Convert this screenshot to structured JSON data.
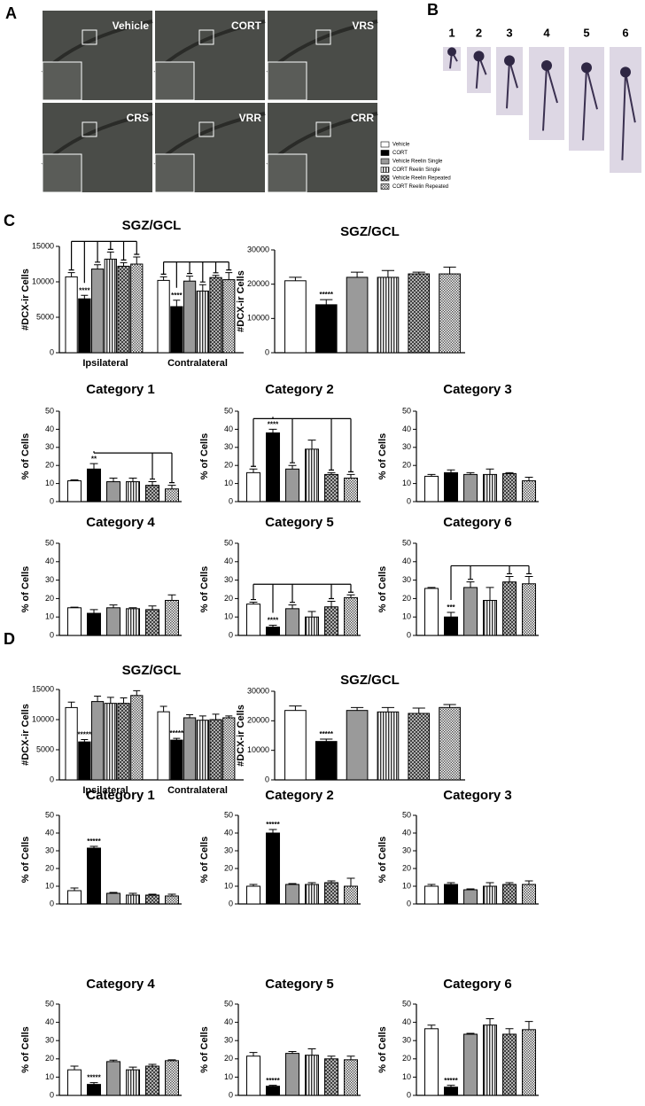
{
  "panel_labels": [
    "A",
    "B",
    "C",
    "D"
  ],
  "micrographs": [
    "Vehicle",
    "CORT",
    "VRS",
    "CRS",
    "VRR",
    "CRR"
  ],
  "morphology_categories": [
    "1",
    "2",
    "3",
    "4",
    "5",
    "6"
  ],
  "legend": [
    {
      "name": "Vehicle",
      "fill": "#ffffff"
    },
    {
      "name": "CORT",
      "fill": "#000000"
    },
    {
      "name": "Vehicle Reelin Single",
      "fill": "#9a9a9a"
    },
    {
      "name": "CORT Reelin Single",
      "fill": "url(#p-vstripe)"
    },
    {
      "name": "Vehicle Reelin Repeated",
      "fill": "url(#p-cross)"
    },
    {
      "name": "CORT Reelin Repeated",
      "fill": "url(#p-check)"
    }
  ],
  "chart_data": [
    {
      "type": "grouped-bar",
      "title": "SGZ/GCL",
      "y_label": "#DCX-ir Cells",
      "categories": [
        "Ipsilateral",
        "Contralateral"
      ],
      "series": [
        {
          "values": [
            10700,
            10200
          ],
          "errors": [
            600,
            500
          ]
        },
        {
          "values": [
            7600,
            6500
          ],
          "errors": [
            500,
            900
          ]
        },
        {
          "values": [
            11800,
            10100
          ],
          "errors": [
            600,
            700
          ]
        },
        {
          "values": [
            13200,
            8700
          ],
          "errors": [
            1000,
            900
          ]
        },
        {
          "values": [
            12200,
            10600
          ],
          "errors": [
            500,
            300
          ]
        },
        {
          "values": [
            12500,
            10300
          ],
          "errors": [
            1000,
            1000
          ]
        }
      ],
      "annotations": [
        {
          "series": 1,
          "category": 0,
          "text": "****"
        },
        {
          "series": 1,
          "category": 1,
          "text": "****"
        }
      ],
      "brackets": [
        {
          "category": 0,
          "from": 1,
          "to": [
            0,
            2,
            3,
            4,
            5
          ]
        },
        {
          "category": 1,
          "from": 1,
          "to": [
            0,
            2,
            3,
            4,
            5
          ]
        }
      ],
      "ylim": [
        0,
        15000
      ],
      "yticks": [
        0,
        5000,
        10000,
        15000
      ]
    },
    {
      "type": "bar",
      "title": "SGZ/GCL",
      "y_label": "#DCX-ir Cells",
      "values": [
        21000,
        14000,
        22000,
        22000,
        23000,
        23000
      ],
      "errors": [
        1000,
        1500,
        1500,
        2000,
        500,
        2000
      ],
      "annotations": [
        {
          "bar": 1,
          "text": "*****"
        }
      ],
      "ylim": [
        0,
        30000
      ],
      "yticks": [
        0,
        10000,
        20000,
        30000
      ]
    },
    {
      "type": "bar",
      "title": "Category 1",
      "y_label": "% of Cells",
      "values": [
        11.5,
        18,
        11,
        11,
        9,
        7
      ],
      "errors": [
        0.5,
        3,
        2,
        2,
        2,
        2
      ],
      "annotations": [
        {
          "bar": 1,
          "text": "**"
        }
      ],
      "brackets": [
        {
          "from": 1,
          "to": [
            4,
            5
          ]
        }
      ],
      "ylim": [
        0,
        50
      ],
      "yticks": [
        0,
        10,
        20,
        30,
        40,
        50
      ]
    },
    {
      "type": "bar",
      "title": "Category 2",
      "y_label": "% of Cells",
      "values": [
        16,
        38,
        18,
        29,
        15,
        13
      ],
      "errors": [
        2,
        2,
        2,
        5,
        1,
        2
      ],
      "annotations": [
        {
          "bar": 1,
          "text": "****"
        }
      ],
      "brackets": [
        {
          "from": 1,
          "to": [
            0,
            2,
            4,
            5
          ]
        }
      ],
      "ylim": [
        0,
        50
      ],
      "yticks": [
        0,
        10,
        20,
        30,
        40,
        50
      ]
    },
    {
      "type": "bar",
      "title": "Category 3",
      "y_label": "% of Cells",
      "values": [
        14,
        16,
        15,
        15,
        15.5,
        11.5
      ],
      "errors": [
        1,
        1.5,
        1,
        3,
        0.5,
        2
      ],
      "ylim": [
        0,
        50
      ],
      "yticks": [
        0,
        10,
        20,
        30,
        40,
        50
      ]
    },
    {
      "type": "bar",
      "title": "Category 4",
      "y_label": "% of Cells",
      "values": [
        15,
        12,
        15,
        14.5,
        14,
        19
      ],
      "errors": [
        0.3,
        2,
        1.5,
        0.5,
        2,
        3
      ],
      "ylim": [
        0,
        50
      ],
      "yticks": [
        0,
        10,
        20,
        30,
        40,
        50
      ]
    },
    {
      "type": "bar",
      "title": "Category 5",
      "y_label": "% of Cells",
      "values": [
        17,
        4.5,
        14.5,
        10,
        15.5,
        20.5
      ],
      "errors": [
        1,
        1,
        2,
        3,
        3,
        1.5
      ],
      "annotations": [
        {
          "bar": 1,
          "text": "****"
        }
      ],
      "brackets": [
        {
          "from": 1,
          "to": [
            0,
            2,
            4,
            5
          ]
        }
      ],
      "ylim": [
        0,
        50
      ],
      "yticks": [
        0,
        10,
        20,
        30,
        40,
        50
      ]
    },
    {
      "type": "bar",
      "title": "Category 6",
      "y_label": "% of Cells",
      "values": [
        25.5,
        10,
        26,
        19,
        29,
        28
      ],
      "errors": [
        0.5,
        2.5,
        3,
        7,
        3,
        4
      ],
      "annotations": [
        {
          "bar": 1,
          "text": "***"
        }
      ],
      "brackets": [
        {
          "from": 1,
          "to": [
            2,
            4,
            5
          ]
        }
      ],
      "ylim": [
        0,
        50
      ],
      "yticks": [
        0,
        10,
        20,
        30,
        40,
        50
      ]
    },
    {
      "type": "grouped-bar",
      "title": "SGZ/GCL",
      "y_label": "#DCX-ir Cells",
      "categories": [
        "Ipsilateral",
        "Contralateral"
      ],
      "series": [
        {
          "values": [
            12000,
            11300
          ],
          "errors": [
            900,
            900
          ]
        },
        {
          "values": [
            6300,
            6600
          ],
          "errors": [
            400,
            300
          ]
        },
        {
          "values": [
            13000,
            10300
          ],
          "errors": [
            900,
            500
          ]
        },
        {
          "values": [
            12700,
            9900
          ],
          "errors": [
            1000,
            700
          ]
        },
        {
          "values": [
            12700,
            10000
          ],
          "errors": [
            900,
            900
          ]
        },
        {
          "values": [
            14000,
            10300
          ],
          "errors": [
            800,
            300
          ]
        }
      ],
      "annotations": [
        {
          "series": 1,
          "category": 0,
          "text": "*****"
        },
        {
          "series": 1,
          "category": 1,
          "text": "*****"
        }
      ],
      "ylim": [
        0,
        15000
      ],
      "yticks": [
        0,
        5000,
        10000,
        15000
      ]
    },
    {
      "type": "bar",
      "title": "SGZ/GCL",
      "y_label": "#DCX-ir Cells",
      "values": [
        23500,
        13000,
        23500,
        23000,
        22500,
        24500
      ],
      "errors": [
        1500,
        800,
        1000,
        1500,
        1800,
        1000
      ],
      "annotations": [
        {
          "bar": 1,
          "text": "*****"
        }
      ],
      "ylim": [
        0,
        30000
      ],
      "yticks": [
        0,
        10000,
        20000,
        30000
      ]
    },
    {
      "type": "bar",
      "title": "Category 1",
      "y_label": "% of Cells",
      "values": [
        7.5,
        31.5,
        6,
        5,
        5,
        4.5
      ],
      "errors": [
        1.5,
        1,
        0.5,
        1,
        0.5,
        1
      ],
      "annotations": [
        {
          "bar": 1,
          "text": "*****"
        }
      ],
      "ylim": [
        0,
        50
      ],
      "yticks": [
        0,
        10,
        20,
        30,
        40,
        50
      ]
    },
    {
      "type": "bar",
      "title": "Category 2",
      "y_label": "% of Cells",
      "values": [
        10,
        40,
        11,
        11,
        12,
        10
      ],
      "errors": [
        1,
        2,
        0.5,
        1,
        1,
        4.5
      ],
      "annotations": [
        {
          "bar": 1,
          "text": "*****"
        }
      ],
      "ylim": [
        0,
        50
      ],
      "yticks": [
        0,
        10,
        20,
        30,
        40,
        50
      ]
    },
    {
      "type": "bar",
      "title": "Category 3",
      "y_label": "% of Cells",
      "values": [
        10,
        11,
        8,
        10,
        11,
        11
      ],
      "errors": [
        1,
        1,
        0.5,
        2,
        1,
        2
      ],
      "ylim": [
        0,
        50
      ],
      "yticks": [
        0,
        10,
        20,
        30,
        40,
        50
      ]
    },
    {
      "type": "bar",
      "title": "Category 4",
      "y_label": "% of Cells",
      "values": [
        14,
        6,
        18.5,
        14,
        16,
        19
      ],
      "errors": [
        2,
        1,
        0.8,
        1.5,
        1,
        0.5
      ],
      "annotations": [
        {
          "bar": 1,
          "text": "*****"
        }
      ],
      "ylim": [
        0,
        50
      ],
      "yticks": [
        0,
        10,
        20,
        30,
        40,
        50
      ]
    },
    {
      "type": "bar",
      "title": "Category 5",
      "y_label": "% of Cells",
      "values": [
        21.5,
        5,
        23,
        22,
        20,
        19.5
      ],
      "errors": [
        2,
        0.5,
        1,
        3.5,
        1.5,
        2
      ],
      "annotations": [
        {
          "bar": 1,
          "text": "*****"
        }
      ],
      "ylim": [
        0,
        50
      ],
      "yticks": [
        0,
        10,
        20,
        30,
        40,
        50
      ]
    },
    {
      "type": "bar",
      "title": "Category 6",
      "y_label": "% of Cells",
      "values": [
        36.5,
        4.5,
        33.5,
        38.5,
        33.5,
        36
      ],
      "errors": [
        2,
        1,
        0.5,
        3.5,
        3,
        4.5
      ],
      "annotations": [
        {
          "bar": 1,
          "text": "*****"
        }
      ],
      "ylim": [
        0,
        50
      ],
      "yticks": [
        0,
        10,
        20,
        30,
        40,
        50
      ]
    }
  ]
}
